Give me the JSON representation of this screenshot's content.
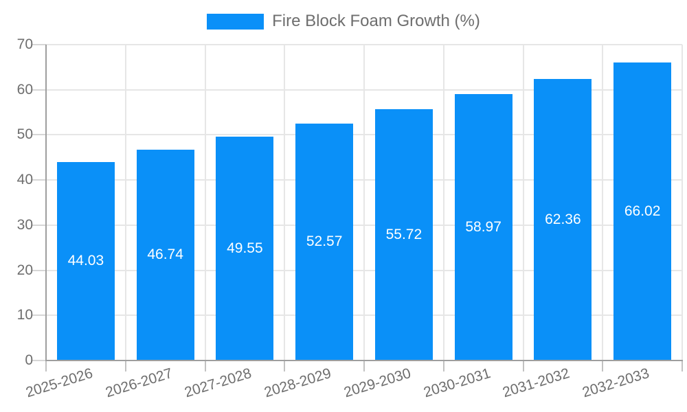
{
  "legend": {
    "label": "Fire Block Foam Growth (%)"
  },
  "chart_data": {
    "type": "bar",
    "title": "Fire Block Foam Growth (%)",
    "categories": [
      "2025-2026",
      "2026-2027",
      "2027-2028",
      "2028-2029",
      "2029-2030",
      "2030-2031",
      "2031-2032",
      "2032-2033"
    ],
    "values": [
      44.03,
      46.74,
      49.55,
      52.57,
      55.72,
      58.97,
      62.36,
      66.02
    ],
    "value_labels": [
      "44.03",
      "46.74",
      "49.55",
      "52.57",
      "55.72",
      "58.97",
      "62.36",
      "66.02"
    ],
    "xlabel": "",
    "ylabel": "",
    "ylim": [
      0,
      70
    ],
    "yticks": [
      "0",
      "10",
      "20",
      "30",
      "40",
      "50",
      "60",
      "70"
    ],
    "grid": true,
    "legend_position": "top-center",
    "colors": {
      "bar": "#0a90f8",
      "value_label": "#ffffff",
      "axis_text": "#6e6e6e",
      "gridline": "#e6e6e6",
      "axis_line": "#9e9e9e"
    }
  }
}
